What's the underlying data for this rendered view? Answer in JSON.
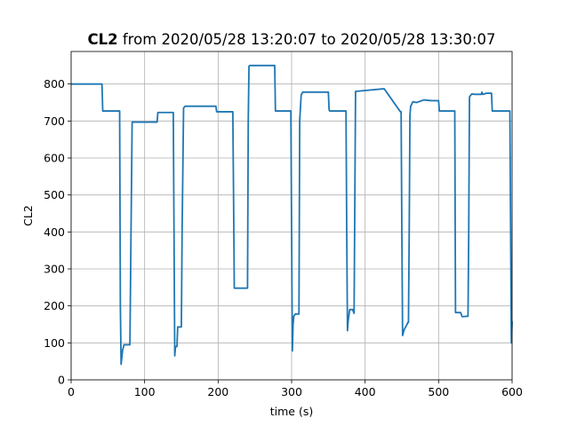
{
  "chart_data": {
    "type": "line",
    "title_bold": "CL2",
    "title_rest": " from 2020/05/28 13:20:07 to 2020/05/28 13:30:07",
    "xlabel": "time (s)",
    "ylabel": "CL2",
    "xlim": [
      0,
      600
    ],
    "ylim": [
      0,
      888
    ],
    "xticks": [
      0,
      100,
      200,
      300,
      400,
      500,
      600
    ],
    "yticks": [
      0,
      100,
      200,
      300,
      400,
      500,
      600,
      700,
      800
    ],
    "grid": true,
    "line_color": "#1f77b4",
    "series": [
      {
        "x": [
          0,
          42,
          43,
          66,
          67,
          68,
          70,
          72,
          75,
          80,
          81,
          83,
          117,
          118,
          139,
          140,
          141,
          142,
          144,
          145,
          150,
          151,
          153,
          155,
          197,
          198,
          220,
          221,
          222,
          240,
          241,
          242,
          243,
          277,
          278,
          299,
          300,
          301,
          302,
          303,
          305,
          310,
          311,
          313,
          315,
          350,
          351,
          352,
          374,
          375,
          376,
          377,
          379,
          383,
          385,
          387,
          425,
          426,
          448,
          449,
          450,
          451,
          453,
          457,
          458,
          459,
          460,
          461,
          462,
          465,
          470,
          480,
          490,
          500,
          501,
          522,
          523,
          530,
          532,
          533,
          540,
          541,
          542,
          545,
          550,
          558,
          559,
          560,
          565,
          570,
          572,
          573,
          575,
          597,
          598,
          599,
          600
        ],
        "y": [
          800,
          800,
          727,
          727,
          200,
          42,
          80,
          95,
          95,
          95,
          300,
          697,
          697,
          723,
          723,
          400,
          65,
          90,
          90,
          143,
          143,
          400,
          735,
          740,
          740,
          725,
          725,
          500,
          248,
          248,
          700,
          848,
          850,
          850,
          727,
          727,
          400,
          78,
          150,
          172,
          178,
          178,
          700,
          770,
          778,
          778,
          730,
          727,
          727,
          400,
          133,
          160,
          190,
          190,
          180,
          780,
          787,
          787,
          725,
          725,
          400,
          120,
          135,
          150,
          155,
          155,
          400,
          715,
          740,
          752,
          750,
          757,
          755,
          755,
          727,
          727,
          182,
          182,
          171,
          171,
          172,
          400,
          765,
          773,
          772,
          772,
          778,
          772,
          775,
          775,
          775,
          727,
          727,
          727,
          400,
          100,
          158
        ]
      }
    ]
  }
}
